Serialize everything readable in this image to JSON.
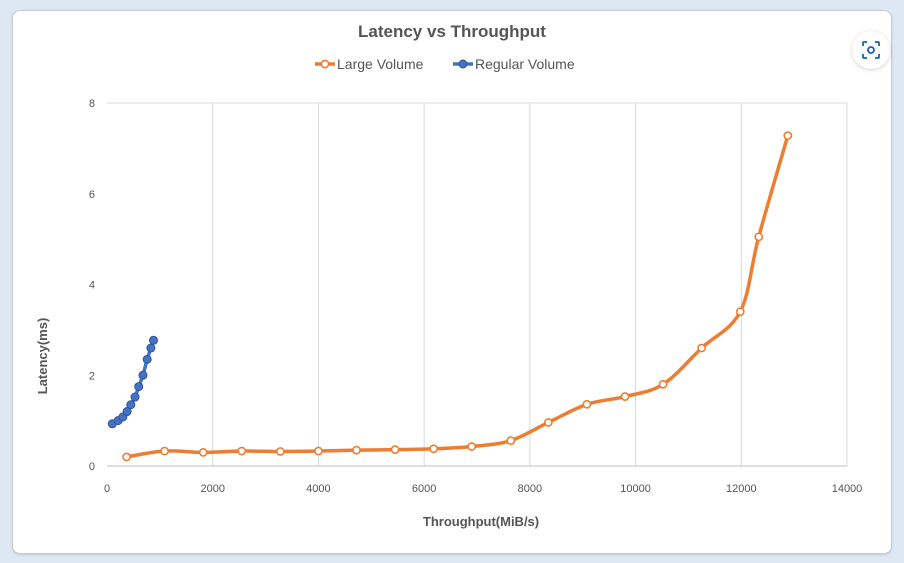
{
  "chart_data": {
    "type": "line",
    "title": "Latency vs Throughput",
    "xlabel": "Throughput(MiB/s)",
    "ylabel": "Latency(ms)",
    "xlim": [
      0,
      14000
    ],
    "ylim": [
      0,
      8
    ],
    "xticks": [
      "0",
      "2000",
      "4000",
      "6000",
      "8000",
      "10000",
      "12000",
      "14000"
    ],
    "yticks": [
      "0",
      "2",
      "4",
      "6",
      "8"
    ],
    "grid": "vertical",
    "legend_position": "top",
    "series": [
      {
        "name": "Large Volume",
        "color": "#ed7d31",
        "marker": "hollow",
        "x": [
          370,
          1090,
          1820,
          2550,
          3280,
          4000,
          4720,
          5450,
          6180,
          6900,
          7640,
          8350,
          9080,
          9800,
          10520,
          11250,
          11980,
          12330,
          12880
        ],
        "y": [
          0.2,
          0.33,
          0.3,
          0.33,
          0.32,
          0.33,
          0.35,
          0.36,
          0.38,
          0.43,
          0.56,
          0.96,
          1.36,
          1.53,
          1.8,
          2.6,
          3.4,
          5.05,
          7.28
        ]
      },
      {
        "name": "Regular Volume",
        "color": "#4472c4",
        "marker": "filled",
        "x": [
          100,
          210,
          300,
          380,
          450,
          530,
          600,
          680,
          760,
          830,
          880
        ],
        "y": [
          0.93,
          1.0,
          1.08,
          1.2,
          1.35,
          1.52,
          1.75,
          2.0,
          2.35,
          2.6,
          2.77
        ]
      }
    ]
  },
  "toolbar": {
    "lens_icon": "lens-scan-icon"
  }
}
